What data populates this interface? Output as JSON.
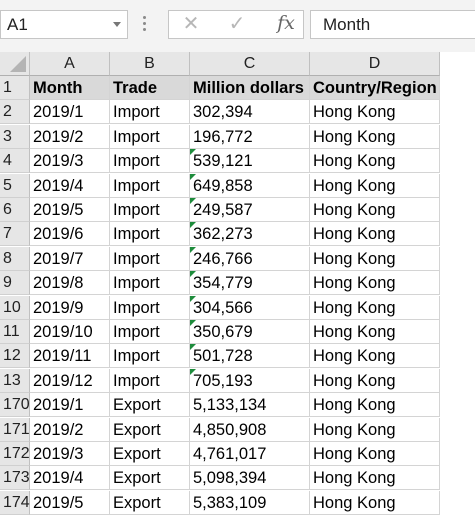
{
  "formula_bar": {
    "name_box": "A1",
    "cancel_icon": "close-icon",
    "enter_icon": "check-icon",
    "function_label": "fx",
    "value": "Month"
  },
  "columns": [
    "A",
    "B",
    "C",
    "D"
  ],
  "rows": [
    {
      "num": "1",
      "cells": [
        "Month",
        "Trade",
        "Million dollars",
        "Country/Region"
      ],
      "header": true
    },
    {
      "num": "2",
      "cells": [
        "2019/1",
        "Import",
        "302,394",
        "Hong Kong"
      ]
    },
    {
      "num": "3",
      "cells": [
        "2019/2",
        "Import",
        "196,772",
        "Hong Kong"
      ]
    },
    {
      "num": "4",
      "cells": [
        "2019/3",
        "Import",
        "539,121",
        "Hong Kong"
      ],
      "flag": true
    },
    {
      "num": "5",
      "cells": [
        "2019/4",
        "Import",
        "649,858",
        "Hong Kong"
      ],
      "flag": true
    },
    {
      "num": "6",
      "cells": [
        "2019/5",
        "Import",
        "249,587",
        "Hong Kong"
      ],
      "flag": true
    },
    {
      "num": "7",
      "cells": [
        "2019/6",
        "Import",
        "362,273",
        "Hong Kong"
      ],
      "flag": true
    },
    {
      "num": "8",
      "cells": [
        "2019/7",
        "Import",
        "246,766",
        "Hong Kong"
      ],
      "flag": true
    },
    {
      "num": "9",
      "cells": [
        "2019/8",
        "Import",
        "354,779",
        "Hong Kong"
      ],
      "flag": true
    },
    {
      "num": "10",
      "cells": [
        "2019/9",
        "Import",
        "304,566",
        "Hong Kong"
      ],
      "flag": true
    },
    {
      "num": "11",
      "cells": [
        "2019/10",
        "Import",
        "350,679",
        "Hong Kong"
      ],
      "flag": true
    },
    {
      "num": "12",
      "cells": [
        "2019/11",
        "Import",
        "501,728",
        "Hong Kong"
      ],
      "flag": true
    },
    {
      "num": "13",
      "cells": [
        "2019/12",
        "Import",
        "705,193",
        "Hong Kong"
      ],
      "flag": true
    },
    {
      "num": "170",
      "cells": [
        "2019/1",
        "Export",
        "5,133,134",
        "Hong Kong"
      ]
    },
    {
      "num": "171",
      "cells": [
        "2019/2",
        "Export",
        "4,850,908",
        "Hong Kong"
      ]
    },
    {
      "num": "172",
      "cells": [
        "2019/3",
        "Export",
        "4,761,017",
        "Hong Kong"
      ]
    },
    {
      "num": "173",
      "cells": [
        "2019/4",
        "Export",
        "5,098,394",
        "Hong Kong"
      ]
    },
    {
      "num": "174",
      "cells": [
        "2019/5",
        "Export",
        "5,383,109",
        "Hong Kong"
      ]
    }
  ],
  "colors": {
    "header_fill": "#d9d9d9",
    "error_flag": "#1e8c3c"
  }
}
